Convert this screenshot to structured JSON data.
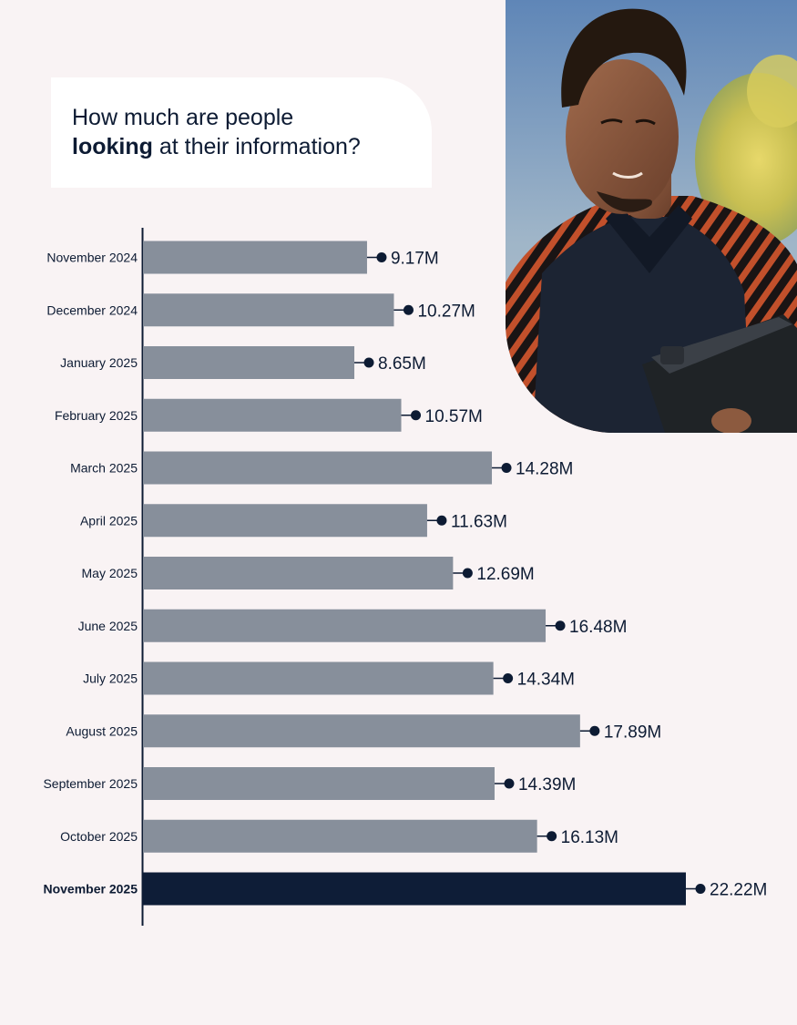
{
  "title": {
    "line1": "How much are people",
    "line2_strong": "looking",
    "line2_rest": " at their information?"
  },
  "photo": {
    "icon": "person-with-tablet-photo"
  },
  "colors": {
    "background": "#f9f3f4",
    "bar": "#878f9b",
    "bar_highlight": "#0e1d37",
    "text": "#0d1b33",
    "card": "#ffffff"
  },
  "chart_data": {
    "type": "bar",
    "orientation": "horizontal",
    "title": "How much are people looking at their information?",
    "xlabel": "",
    "ylabel": "",
    "xlim": [
      0,
      22.22
    ],
    "grid": false,
    "categories": [
      "November 2024",
      "December 2024",
      "January 2025",
      "February 2025",
      "March 2025",
      "April 2025",
      "May 2025",
      "June 2025",
      "July 2025",
      "August 2025",
      "September 2025",
      "October 2025",
      "November 2025"
    ],
    "values": [
      9.17,
      10.27,
      8.65,
      10.57,
      14.28,
      11.63,
      12.69,
      16.48,
      14.34,
      17.89,
      14.39,
      16.13,
      22.22
    ],
    "labels": [
      "9.17M",
      "10.27M",
      "8.65M",
      "10.57M",
      "14.28M",
      "11.63M",
      "12.69M",
      "16.48M",
      "14.34M",
      "17.89M",
      "14.39M",
      "16.13M",
      "22.22M"
    ],
    "highlight_index": 12
  }
}
